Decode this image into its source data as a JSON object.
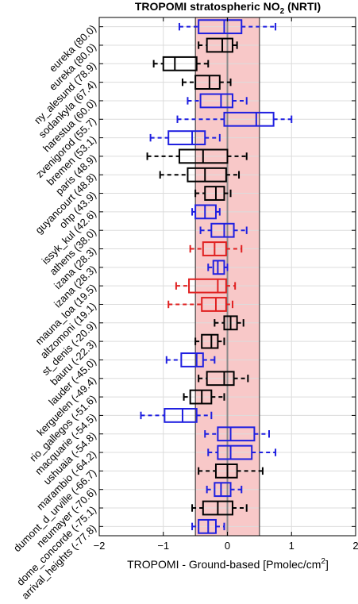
{
  "chart_data": {
    "type": "box",
    "title": "TROPOMI stratospheric NO",
    "title_sub": "2",
    "title_suffix": " (NRTI)",
    "xlabel": "TROPOMI - Ground-based [Pmolec/cm",
    "xlabel_sup": "2",
    "xlabel_suffix": "]",
    "xlim": [
      -2,
      2
    ],
    "xticks": [
      -2,
      -1,
      0,
      1,
      2
    ],
    "shaded_band": [
      -0.5,
      0.5
    ],
    "shaded_color": "#f8c8c8",
    "zero_line": 0,
    "grid": true,
    "colors": {
      "black": "#000000",
      "blue": "#1f1fe0",
      "red": "#e02020"
    },
    "stations": [
      {
        "label": "eureka (80.0)",
        "color": "blue",
        "whisker_low": -0.75,
        "q1": -0.45,
        "median": -0.05,
        "q3": 0.22,
        "whisker_high": 0.75
      },
      {
        "label": "eureka (80.0)",
        "color": "black",
        "whisker_low": -0.45,
        "q1": -0.32,
        "median": -0.08,
        "q3": 0.08,
        "whisker_high": 0.15
      },
      {
        "label": "ny_alesund (78.9)",
        "color": "black",
        "whisker_low": -1.15,
        "q1": -1.0,
        "median": -0.82,
        "q3": -0.48,
        "whisker_high": -0.3
      },
      {
        "label": "sodankyla (67.4)",
        "color": "black",
        "whisker_low": -0.7,
        "q1": -0.5,
        "median": -0.28,
        "q3": -0.12,
        "whisker_high": 0.05
      },
      {
        "label": "harestua (60.0)",
        "color": "blue",
        "whisker_low": -0.62,
        "q1": -0.42,
        "median": -0.1,
        "q3": 0.08,
        "whisker_high": 0.3
      },
      {
        "label": "zvenigorod (55.7)",
        "color": "blue",
        "whisker_low": -0.78,
        "q1": -0.05,
        "median": 0.45,
        "q3": 0.72,
        "whisker_high": 1.0
      },
      {
        "label": "bremen (53.1)",
        "color": "blue",
        "whisker_low": -1.2,
        "q1": -0.92,
        "median": -0.55,
        "q3": -0.35,
        "whisker_high": -0.12
      },
      {
        "label": "paris (48.9)",
        "color": "black",
        "whisker_low": -1.25,
        "q1": -0.75,
        "median": -0.38,
        "q3": 0.0,
        "whisker_high": 0.3
      },
      {
        "label": "guyancourt (48.8)",
        "color": "black",
        "whisker_low": -1.05,
        "q1": -0.62,
        "median": -0.35,
        "q3": -0.02,
        "whisker_high": 0.18
      },
      {
        "label": "ohp (43.9)",
        "color": "black",
        "whisker_low": -0.5,
        "q1": -0.35,
        "median": -0.18,
        "q3": -0.05,
        "whisker_high": 0.05
      },
      {
        "label": "issyk_kul (42.6)",
        "color": "blue",
        "whisker_low": -0.55,
        "q1": -0.5,
        "median": -0.35,
        "q3": -0.18,
        "whisker_high": -0.12
      },
      {
        "label": "athens (38.0)",
        "color": "blue",
        "whisker_low": -0.42,
        "q1": -0.25,
        "median": -0.05,
        "q3": 0.1,
        "whisker_high": 0.3
      },
      {
        "label": "izana (28.3)",
        "color": "red",
        "whisker_low": -0.58,
        "q1": -0.38,
        "median": -0.2,
        "q3": -0.02,
        "whisker_high": 0.22
      },
      {
        "label": "izana (28.3)",
        "color": "blue",
        "whisker_low": -0.3,
        "q1": -0.22,
        "median": -0.15,
        "q3": -0.05,
        "whisker_high": 0.0
      },
      {
        "label": "mauna_loa (19.5)",
        "color": "red",
        "whisker_low": -0.8,
        "q1": -0.6,
        "median": -0.15,
        "q3": -0.02,
        "whisker_high": 0.12
      },
      {
        "label": "altzomoni (19.1)",
        "color": "red",
        "whisker_low": -0.92,
        "q1": -0.4,
        "median": -0.18,
        "q3": -0.02,
        "whisker_high": 0.08
      },
      {
        "label": "st_denis (-20.9)",
        "color": "black",
        "whisker_low": -0.2,
        "q1": -0.05,
        "median": 0.05,
        "q3": 0.15,
        "whisker_high": 0.25
      },
      {
        "label": "bauru (-22.3)",
        "color": "black",
        "whisker_low": -0.5,
        "q1": -0.4,
        "median": -0.25,
        "q3": -0.15,
        "whisker_high": -0.05
      },
      {
        "label": "lauder (-45.0)",
        "color": "blue",
        "whisker_low": -0.95,
        "q1": -0.72,
        "median": -0.48,
        "q3": -0.38,
        "whisker_high": -0.2
      },
      {
        "label": "kerguelen (-49.4)",
        "color": "black",
        "whisker_low": -0.45,
        "q1": -0.32,
        "median": -0.05,
        "q3": 0.1,
        "whisker_high": 0.32
      },
      {
        "label": "rio_gallegos (-51.6)",
        "color": "black",
        "whisker_low": -0.68,
        "q1": -0.58,
        "median": -0.4,
        "q3": -0.25,
        "whisker_high": -0.05
      },
      {
        "label": "macquarie (-54.5)",
        "color": "blue",
        "whisker_low": -1.35,
        "q1": -0.98,
        "median": -0.7,
        "q3": -0.48,
        "whisker_high": -0.25
      },
      {
        "label": "ushuaia (-54.8)",
        "color": "blue",
        "whisker_low": -0.35,
        "q1": -0.15,
        "median": 0.05,
        "q3": 0.42,
        "whisker_high": 0.65
      },
      {
        "label": "marambio (-64.2)",
        "color": "blue",
        "whisker_low": -0.3,
        "q1": -0.15,
        "median": 0.05,
        "q3": 0.38,
        "whisker_high": 0.75
      },
      {
        "label": "dumont_d_urville (-66.7)",
        "color": "black",
        "whisker_low": -0.45,
        "q1": -0.18,
        "median": 0.0,
        "q3": 0.15,
        "whisker_high": 0.55
      },
      {
        "label": "neumayer (-70.6)",
        "color": "blue",
        "whisker_low": -0.32,
        "q1": -0.2,
        "median": -0.1,
        "q3": 0.05,
        "whisker_high": 0.22
      },
      {
        "label": "dome_concorde (-75.1)",
        "color": "black",
        "whisker_low": -0.55,
        "q1": -0.38,
        "median": -0.15,
        "q3": 0.08,
        "whisker_high": 0.3
      },
      {
        "label": "arrival_heights (-77.8)",
        "color": "blue",
        "whisker_low": -0.55,
        "q1": -0.45,
        "median": -0.3,
        "q3": -0.18,
        "whisker_high": -0.05
      }
    ]
  }
}
